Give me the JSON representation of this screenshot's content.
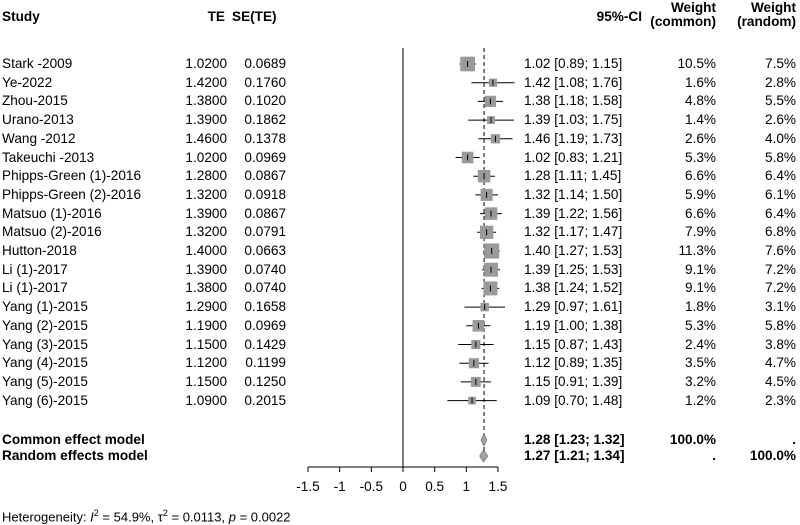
{
  "header": {
    "study": "Study",
    "te": "TE",
    "sete": "SE(TE)",
    "ci": "95%-CI",
    "weight_label": "Weight",
    "common": "(common)",
    "random": "(random)"
  },
  "chart_data": {
    "type": "forest",
    "xlim": [
      -1.5,
      1.5
    ],
    "xticks": [
      "-1.5",
      "-1",
      "-0.5",
      "0",
      "0.5",
      "1",
      "1.5"
    ],
    "reference_line": 0,
    "pooled_line": 1.28,
    "studies": [
      {
        "name": "Stark -2009",
        "te": "1.0200",
        "se": "0.0689",
        "est": 1.02,
        "lo": 0.89,
        "hi": 1.15,
        "ci_text": "1.02 [0.89; 1.15]",
        "w_common": "10.5%",
        "w_random": "7.5%",
        "w": 10.5
      },
      {
        "name": "Ye-2022",
        "te": "1.4200",
        "se": "0.1760",
        "est": 1.42,
        "lo": 1.08,
        "hi": 1.76,
        "ci_text": "1.42 [1.08; 1.76]",
        "w_common": "1.6%",
        "w_random": "2.8%",
        "w": 1.6
      },
      {
        "name": "Zhou-2015",
        "te": "1.3800",
        "se": "0.1020",
        "est": 1.38,
        "lo": 1.18,
        "hi": 1.58,
        "ci_text": "1.38 [1.18; 1.58]",
        "w_common": "4.8%",
        "w_random": "5.5%",
        "w": 4.8
      },
      {
        "name": "Urano-2013",
        "te": "1.3900",
        "se": "0.1862",
        "est": 1.39,
        "lo": 1.03,
        "hi": 1.75,
        "ci_text": "1.39 [1.03; 1.75]",
        "w_common": "1.4%",
        "w_random": "2.6%",
        "w": 1.4
      },
      {
        "name": "Wang -2012",
        "te": "1.4600",
        "se": "0.1378",
        "est": 1.46,
        "lo": 1.19,
        "hi": 1.73,
        "ci_text": "1.46 [1.19; 1.73]",
        "w_common": "2.6%",
        "w_random": "4.0%",
        "w": 2.6
      },
      {
        "name": "Takeuchi -2013",
        "te": "1.0200",
        "se": "0.0969",
        "est": 1.02,
        "lo": 0.83,
        "hi": 1.21,
        "ci_text": "1.02 [0.83; 1.21]",
        "w_common": "5.3%",
        "w_random": "5.8%",
        "w": 5.3
      },
      {
        "name": "Phipps-Green (1)-2016",
        "te": "1.2800",
        "se": "0.0867",
        "est": 1.28,
        "lo": 1.11,
        "hi": 1.45,
        "ci_text": "1.28 [1.11; 1.45]",
        "w_common": "6.6%",
        "w_random": "6.4%",
        "w": 6.6
      },
      {
        "name": "Phipps-Green (2)-2016",
        "te": "1.3200",
        "se": "0.0918",
        "est": 1.32,
        "lo": 1.14,
        "hi": 1.5,
        "ci_text": "1.32 [1.14; 1.50]",
        "w_common": "5.9%",
        "w_random": "6.1%",
        "w": 5.9
      },
      {
        "name": "Matsuo (1)-2016",
        "te": "1.3900",
        "se": "0.0867",
        "est": 1.39,
        "lo": 1.22,
        "hi": 1.56,
        "ci_text": "1.39 [1.22; 1.56]",
        "w_common": "6.6%",
        "w_random": "6.4%",
        "w": 6.6
      },
      {
        "name": "Matsuo (2)-2016",
        "te": "1.3200",
        "se": "0.0791",
        "est": 1.32,
        "lo": 1.17,
        "hi": 1.47,
        "ci_text": "1.32 [1.17; 1.47]",
        "w_common": "7.9%",
        "w_random": "6.8%",
        "w": 7.9
      },
      {
        "name": "Hutton-2018",
        "te": "1.4000",
        "se": "0.0663",
        "est": 1.4,
        "lo": 1.27,
        "hi": 1.53,
        "ci_text": "1.40 [1.27; 1.53]",
        "w_common": "11.3%",
        "w_random": "7.6%",
        "w": 11.3
      },
      {
        "name": "Li (1)-2017",
        "te": "1.3900",
        "se": "0.0740",
        "est": 1.39,
        "lo": 1.25,
        "hi": 1.53,
        "ci_text": "1.39 [1.25; 1.53]",
        "w_common": "9.1%",
        "w_random": "7.2%",
        "w": 9.1
      },
      {
        "name": "Li (1)-2017",
        "te": "1.3800",
        "se": "0.0740",
        "est": 1.38,
        "lo": 1.24,
        "hi": 1.52,
        "ci_text": "1.38 [1.24; 1.52]",
        "w_common": "9.1%",
        "w_random": "7.2%",
        "w": 9.1
      },
      {
        "name": "Yang (1)-2015",
        "te": "1.2900",
        "se": "0.1658",
        "est": 1.29,
        "lo": 0.97,
        "hi": 1.61,
        "ci_text": "1.29 [0.97; 1.61]",
        "w_common": "1.8%",
        "w_random": "3.1%",
        "w": 1.8
      },
      {
        "name": "Yang (2)-2015",
        "te": "1.1900",
        "se": "0.0969",
        "est": 1.19,
        "lo": 1.0,
        "hi": 1.38,
        "ci_text": "1.19 [1.00; 1.38]",
        "w_common": "5.3%",
        "w_random": "5.8%",
        "w": 5.3
      },
      {
        "name": "Yang (3)-2015",
        "te": "1.1500",
        "se": "0.1429",
        "est": 1.15,
        "lo": 0.87,
        "hi": 1.43,
        "ci_text": "1.15 [0.87; 1.43]",
        "w_common": "2.4%",
        "w_random": "3.8%",
        "w": 2.4
      },
      {
        "name": "Yang (4)-2015",
        "te": "1.1200",
        "se": "0.1199",
        "est": 1.12,
        "lo": 0.89,
        "hi": 1.35,
        "ci_text": "1.12 [0.89; 1.35]",
        "w_common": "3.5%",
        "w_random": "4.7%",
        "w": 3.5
      },
      {
        "name": "Yang (5)-2015",
        "te": "1.1500",
        "se": "0.1250",
        "est": 1.15,
        "lo": 0.91,
        "hi": 1.39,
        "ci_text": "1.15 [0.91; 1.39]",
        "w_common": "3.2%",
        "w_random": "4.5%",
        "w": 3.2
      },
      {
        "name": "Yang (6)-2015",
        "te": "1.0900",
        "se": "0.2015",
        "est": 1.09,
        "lo": 0.7,
        "hi": 1.48,
        "ci_text": "1.09 [0.70; 1.48]",
        "w_common": "1.2%",
        "w_random": "2.3%",
        "w": 1.2
      }
    ],
    "pooled": [
      {
        "name": "Common effect model",
        "est": 1.28,
        "lo": 1.23,
        "hi": 1.32,
        "ci_text": "1.28 [1.23; 1.32]",
        "w_common": "100.0%",
        "w_random": "."
      },
      {
        "name": "Random effects model",
        "est": 1.27,
        "lo": 1.21,
        "hi": 1.34,
        "ci_text": "1.27 [1.21; 1.34]",
        "w_common": ".",
        "w_random": "100.0%"
      }
    ],
    "diamond_color": "#a6a6a6",
    "square_color": "#9a9a9a"
  },
  "heterogeneity": {
    "prefix": "Heterogeneity: ",
    "i2_label": "I",
    "i2_sup": "2",
    "i2_value": " = 54.9%, ",
    "tau_label": "τ",
    "tau_sup": "2",
    "tau_value": " = 0.0113, ",
    "p_label": "p",
    "p_value": " = 0.0022"
  }
}
